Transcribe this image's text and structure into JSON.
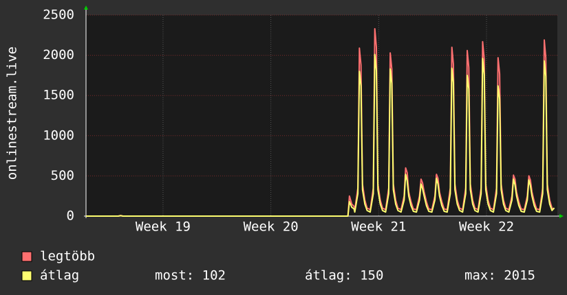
{
  "chart_data": {
    "type": "line",
    "y_label": "onlinestream.live",
    "x": [
      0,
      2.1,
      2.25,
      2.4,
      17.0,
      17.1,
      17.25,
      17.4,
      17.45,
      17.65,
      17.75,
      17.85,
      17.95,
      18.1,
      18.25,
      18.45,
      18.65,
      18.75,
      18.85,
      18.95,
      19.1,
      19.25,
      19.45,
      19.65,
      19.75,
      19.85,
      19.95,
      20.1,
      20.25,
      20.45,
      20.65,
      20.75,
      20.85,
      20.95,
      21.1,
      21.25,
      21.45,
      21.65,
      21.75,
      21.85,
      21.95,
      22.1,
      22.25,
      22.45,
      22.65,
      22.75,
      22.85,
      22.95,
      23.1,
      23.25,
      23.45,
      23.65,
      23.75,
      23.85,
      23.95,
      24.1,
      24.25,
      24.45,
      24.65,
      24.75,
      24.85,
      24.95,
      25.1,
      25.25,
      25.45,
      25.65,
      25.75,
      25.85,
      25.95,
      26.1,
      26.25,
      26.45,
      26.65,
      26.75,
      26.85,
      26.95,
      27.1,
      27.25,
      27.45,
      27.65,
      27.75,
      27.85,
      27.95,
      28.1,
      28.25,
      28.45,
      28.65,
      28.75,
      28.85,
      28.95,
      29.1,
      29.25,
      29.45,
      29.65,
      29.75,
      29.85,
      29.95,
      30.1,
      30.25,
      30.4
    ],
    "series": [
      {
        "name": "legtöbb",
        "color": "#ff7070",
        "values": [
          0,
          0,
          8,
          0,
          0,
          250,
          150,
          120,
          80,
          350,
          2090,
          1880,
          400,
          200,
          100,
          80,
          350,
          2330,
          2100,
          400,
          200,
          100,
          80,
          350,
          2030,
          1830,
          400,
          200,
          100,
          80,
          250,
          600,
          540,
          300,
          180,
          90,
          80,
          250,
          460,
          410,
          300,
          180,
          90,
          80,
          250,
          520,
          470,
          300,
          180,
          90,
          80,
          350,
          2100,
          1890,
          400,
          200,
          100,
          80,
          350,
          2060,
          1850,
          400,
          200,
          100,
          80,
          350,
          2170,
          1950,
          400,
          200,
          100,
          80,
          350,
          1970,
          1770,
          400,
          200,
          100,
          80,
          250,
          510,
          460,
          300,
          180,
          90,
          80,
          250,
          500,
          450,
          300,
          180,
          90,
          80,
          350,
          2190,
          1970,
          400,
          200,
          100,
          90
        ]
      },
      {
        "name": "átlag",
        "color": "#ffff70",
        "values": [
          0,
          0,
          5,
          0,
          0,
          180,
          110,
          90,
          50,
          280,
          1800,
          1620,
          330,
          150,
          70,
          50,
          280,
          2010,
          1810,
          330,
          150,
          70,
          50,
          280,
          1830,
          1650,
          330,
          150,
          70,
          50,
          200,
          520,
          440,
          250,
          130,
          60,
          50,
          200,
          400,
          340,
          250,
          130,
          60,
          50,
          200,
          470,
          400,
          250,
          130,
          60,
          50,
          280,
          1840,
          1660,
          330,
          150,
          70,
          50,
          280,
          1750,
          1580,
          330,
          150,
          70,
          50,
          280,
          1960,
          1760,
          330,
          150,
          70,
          50,
          280,
          1620,
          1460,
          330,
          150,
          70,
          50,
          200,
          460,
          390,
          250,
          130,
          60,
          50,
          200,
          450,
          380,
          250,
          130,
          60,
          50,
          280,
          1930,
          1740,
          330,
          150,
          70,
          102
        ]
      }
    ],
    "stats": [
      "most: 102",
      "átlag: 150",
      "max: 2015"
    ],
    "xlim": [
      0,
      30.6
    ],
    "xticks": [
      {
        "value": 5,
        "label": "Week 19"
      },
      {
        "value": 12,
        "label": "Week 20"
      },
      {
        "value": 19,
        "label": "Week 21"
      },
      {
        "value": 26,
        "label": "Week 22"
      }
    ],
    "ylim": [
      0,
      2500
    ],
    "yticks": [
      0,
      500,
      1000,
      1500,
      2000,
      2500
    ],
    "grid": true
  }
}
